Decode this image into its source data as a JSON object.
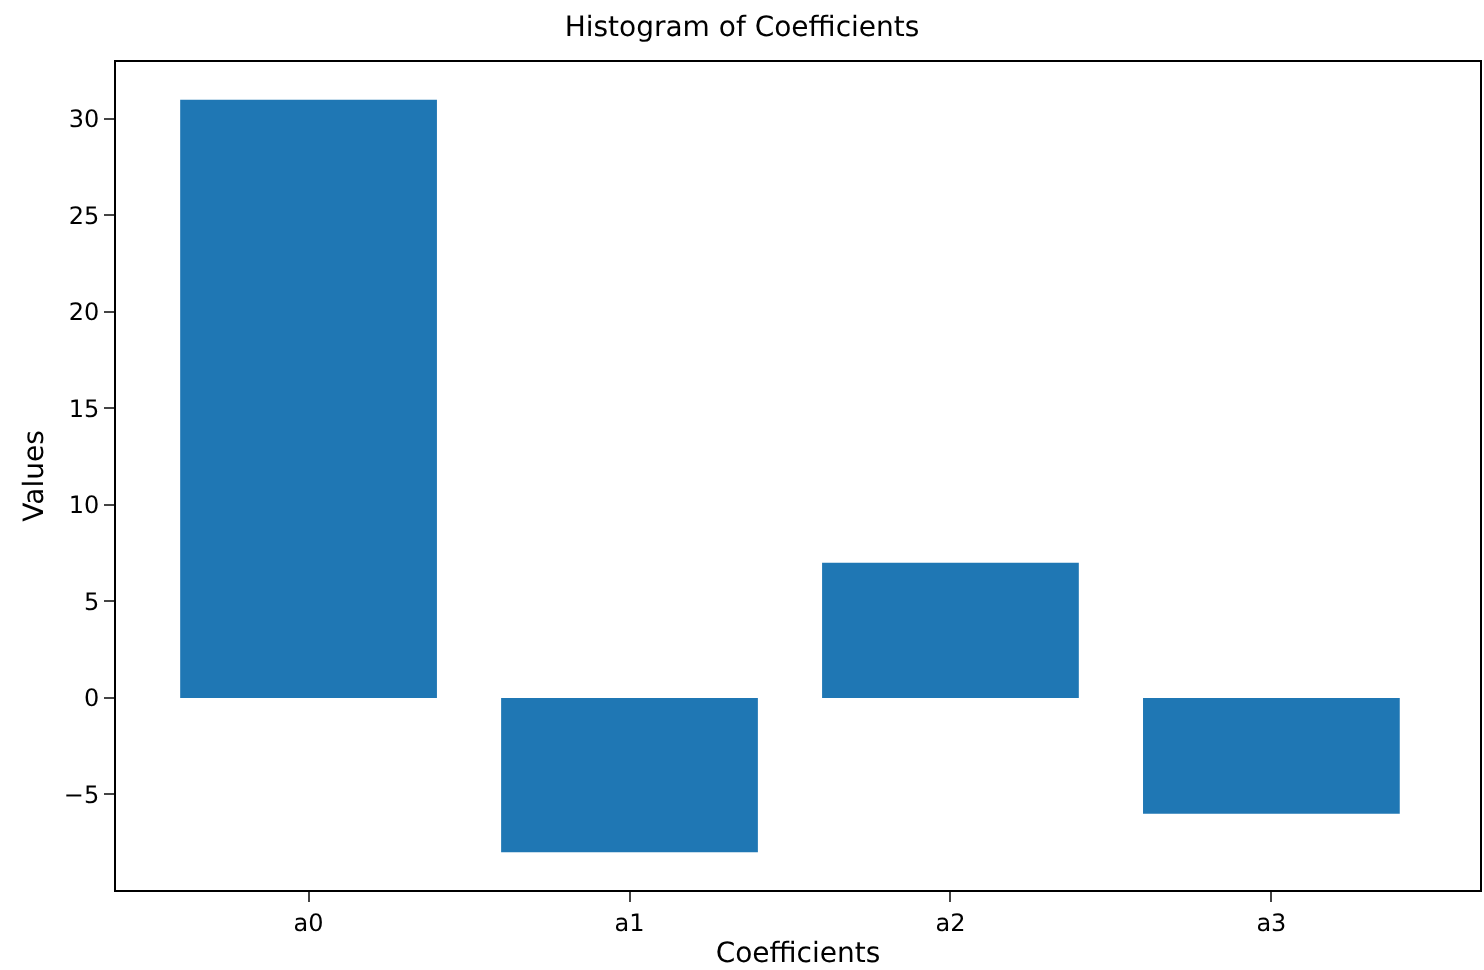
{
  "chart_data": {
    "type": "bar",
    "title": "Histogram of Coefficients",
    "xlabel": "Coefficients",
    "ylabel": "Values",
    "categories": [
      "a0",
      "a1",
      "a2",
      "a3"
    ],
    "values": [
      31,
      -8,
      7,
      -6
    ],
    "color": "#1f77b4",
    "ylim": [
      -9.95,
      32.95
    ],
    "yticks": [
      {
        "value": -5,
        "label": "−5"
      },
      0,
      5,
      10,
      15,
      20,
      25,
      30
    ],
    "grid": false,
    "legend": false
  }
}
